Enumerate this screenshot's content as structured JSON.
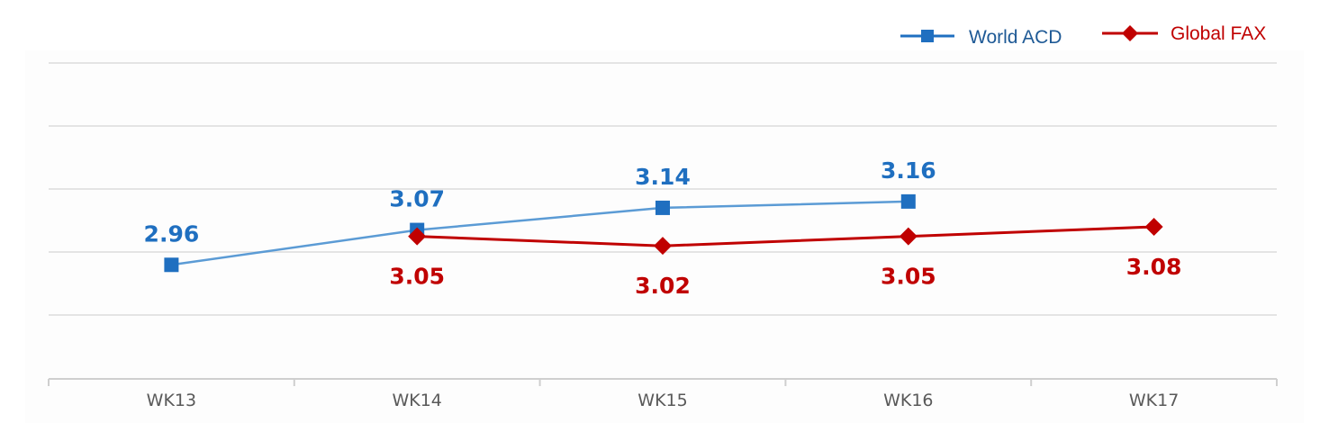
{
  "chart_data": {
    "type": "line",
    "categories": [
      "WK13",
      "WK14",
      "WK15",
      "WK16",
      "WK17"
    ],
    "series": [
      {
        "name": "World ACD",
        "values": [
          2.96,
          3.07,
          3.14,
          3.16,
          null
        ],
        "labels": [
          "2.96",
          "3.07",
          "3.14",
          "3.16",
          ""
        ],
        "color": "#1f6fc0",
        "line_color": "#5b9bd5",
        "marker": "square",
        "label_position": "above"
      },
      {
        "name": "Global FAX",
        "values": [
          null,
          3.05,
          3.02,
          3.05,
          3.08
        ],
        "labels": [
          "",
          "3.05",
          "3.02",
          "3.05",
          "3.08"
        ],
        "color": "#c00000",
        "line_color": "#c00000",
        "marker": "diamond",
        "label_position": "below"
      }
    ],
    "title": "",
    "xlabel": "",
    "ylabel": "",
    "ylim": [
      2.6,
      3.4
    ],
    "grid": true,
    "legend_position": "top-right"
  },
  "colors": {
    "plot_background": "#fdfdfd",
    "grid": "#e4e4e4",
    "axis": "#cfcfcf",
    "legend_world_text": "#1f5a96",
    "legend_fax_text": "#c00000"
  }
}
